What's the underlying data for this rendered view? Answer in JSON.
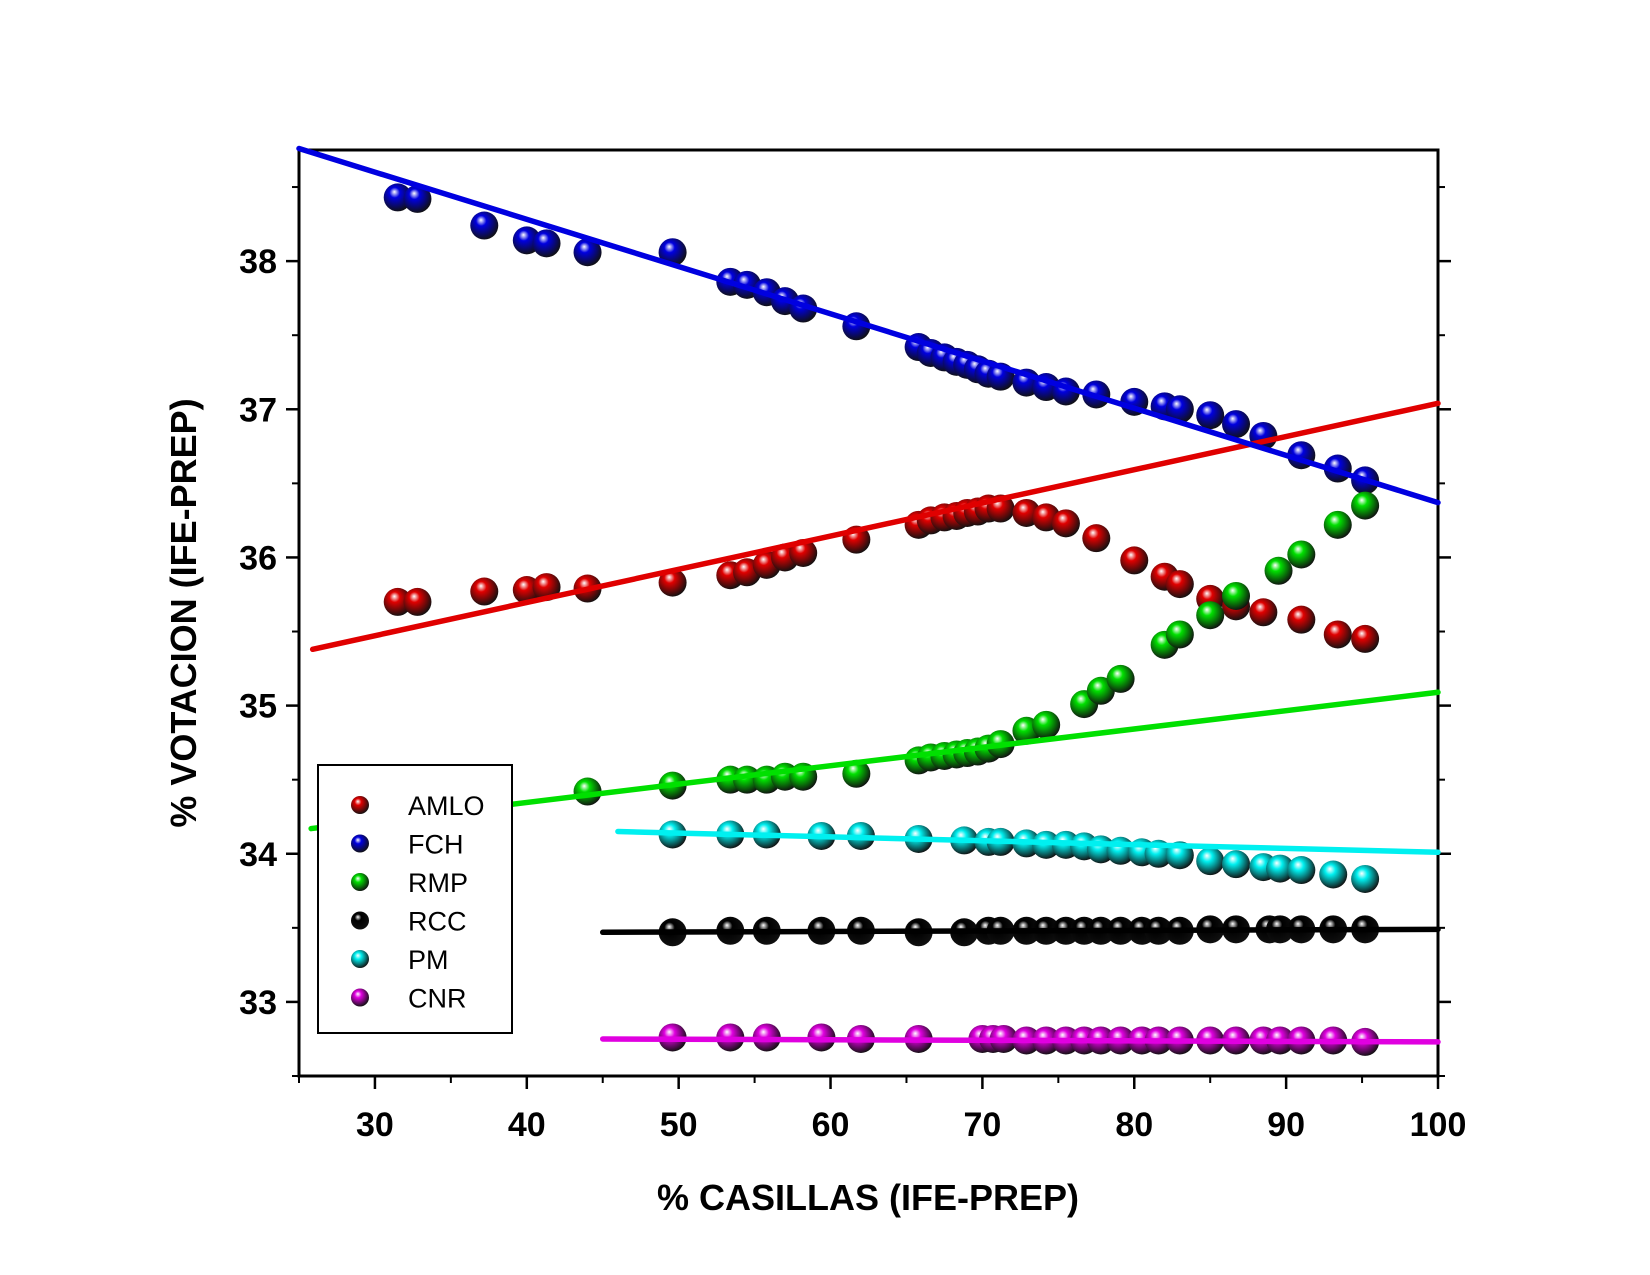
{
  "chart_data": {
    "type": "scatter",
    "xlabel": "% CASILLAS (IFE-PREP)",
    "ylabel": "% VOTACION (IFE-PREP)",
    "xlim": [
      25,
      100
    ],
    "ylim": [
      32.5,
      38.75
    ],
    "x_ticks": [
      30,
      40,
      50,
      60,
      70,
      80,
      90,
      100
    ],
    "y_ticks": [
      33,
      34,
      35,
      36,
      37,
      38
    ],
    "grid": false,
    "legend_position": "bottom-left",
    "series": [
      {
        "name": "AMLO",
        "color": "#e00000",
        "x": [
          31.5,
          32.8,
          37.2,
          40.0,
          41.3,
          44.0,
          49.6,
          53.4,
          54.5,
          55.8,
          57.0,
          58.2,
          61.7,
          65.8,
          66.6,
          67.5,
          68.3,
          69.0,
          69.7,
          70.4,
          71.2,
          72.9,
          74.2,
          75.5,
          77.5,
          80.0,
          82.0,
          83.0,
          85.0,
          86.7,
          88.5,
          91.0,
          93.4,
          95.2
        ],
        "y": [
          35.7,
          35.7,
          35.77,
          35.78,
          35.8,
          35.79,
          35.83,
          35.88,
          35.9,
          35.95,
          36.0,
          36.03,
          36.12,
          36.22,
          36.25,
          36.27,
          36.28,
          36.3,
          36.31,
          36.33,
          36.33,
          36.3,
          36.27,
          36.23,
          36.13,
          35.98,
          35.87,
          35.82,
          35.72,
          35.67,
          35.63,
          35.58,
          35.48,
          35.45
        ],
        "fit": [
          [
            25.9,
            35.38
          ],
          [
            100,
            37.04
          ]
        ]
      },
      {
        "name": "FCH",
        "color": "#0000e0",
        "x": [
          31.5,
          32.8,
          37.2,
          40.0,
          41.3,
          44.0,
          49.6,
          53.4,
          54.5,
          55.8,
          57.0,
          58.2,
          61.7,
          65.8,
          66.6,
          67.5,
          68.3,
          69.0,
          69.7,
          70.4,
          71.2,
          72.9,
          74.2,
          75.5,
          77.5,
          80.0,
          82.0,
          83.0,
          85.0,
          86.7,
          88.5,
          91.0,
          93.4,
          95.2
        ],
        "y": [
          38.43,
          38.42,
          38.24,
          38.14,
          38.12,
          38.06,
          38.06,
          37.86,
          37.84,
          37.79,
          37.73,
          37.68,
          37.56,
          37.42,
          37.38,
          37.35,
          37.32,
          37.3,
          37.27,
          37.24,
          37.22,
          37.18,
          37.15,
          37.12,
          37.1,
          37.05,
          37.02,
          37.0,
          36.96,
          36.9,
          36.82,
          36.69,
          36.6,
          36.52
        ],
        "fit": [
          [
            25,
            38.76
          ],
          [
            100,
            36.37
          ]
        ]
      },
      {
        "name": "RMP",
        "color": "#00e000",
        "x": [
          44.0,
          49.6,
          53.4,
          54.5,
          55.8,
          57.0,
          58.2,
          61.7,
          65.8,
          66.6,
          67.5,
          68.3,
          69.0,
          69.7,
          70.4,
          71.2,
          72.9,
          74.2,
          76.7,
          77.8,
          79.1,
          82.0,
          83.0,
          85.0,
          86.7,
          89.5,
          91.0,
          93.4,
          95.2
        ],
        "y": [
          34.42,
          34.46,
          34.5,
          34.5,
          34.5,
          34.52,
          34.52,
          34.54,
          34.63,
          34.65,
          34.66,
          34.67,
          34.68,
          34.69,
          34.71,
          34.74,
          34.83,
          34.87,
          35.01,
          35.1,
          35.18,
          35.41,
          35.48,
          35.61,
          35.74,
          35.91,
          36.02,
          36.22,
          36.35
        ],
        "fit": [
          [
            25.8,
            34.17
          ],
          [
            100,
            35.09
          ]
        ]
      },
      {
        "name": "RCC",
        "color": "#000000",
        "x": [
          49.6,
          53.4,
          55.8,
          59.4,
          62.0,
          65.8,
          68.8,
          70.4,
          71.2,
          72.9,
          74.2,
          75.5,
          76.7,
          77.8,
          79.1,
          80.5,
          81.6,
          83.0,
          85.0,
          86.7,
          88.9,
          89.6,
          91.0,
          93.1,
          95.2
        ],
        "y": [
          33.47,
          33.48,
          33.48,
          33.48,
          33.48,
          33.47,
          33.47,
          33.48,
          33.48,
          33.48,
          33.48,
          33.48,
          33.48,
          33.48,
          33.48,
          33.48,
          33.48,
          33.48,
          33.49,
          33.49,
          33.49,
          33.49,
          33.49,
          33.49,
          33.49
        ],
        "fit": [
          [
            45,
            33.47
          ],
          [
            100,
            33.49
          ]
        ]
      },
      {
        "name": "PM",
        "color": "#00f0f0",
        "x": [
          49.6,
          53.4,
          55.8,
          59.4,
          62.0,
          65.8,
          68.8,
          70.4,
          71.2,
          72.9,
          74.2,
          75.5,
          76.7,
          77.8,
          79.1,
          80.5,
          81.6,
          83.0,
          85.0,
          86.7,
          88.5,
          89.6,
          91.0,
          93.1,
          95.2
        ],
        "y": [
          34.13,
          34.13,
          34.13,
          34.12,
          34.12,
          34.1,
          34.09,
          34.08,
          34.08,
          34.07,
          34.06,
          34.06,
          34.05,
          34.03,
          34.02,
          34.01,
          34.0,
          33.99,
          33.95,
          33.93,
          33.91,
          33.9,
          33.89,
          33.86,
          33.83
        ],
        "fit": [
          [
            46,
            34.15
          ],
          [
            100,
            34.01
          ]
        ]
      },
      {
        "name": "CNR",
        "color": "#e000e0",
        "x": [
          49.6,
          53.4,
          55.8,
          59.4,
          62.0,
          65.8,
          70.0,
          70.7,
          71.4,
          72.9,
          74.2,
          75.5,
          76.7,
          77.8,
          79.1,
          80.5,
          81.6,
          83.0,
          85.0,
          86.7,
          88.5,
          89.6,
          91.0,
          93.1,
          95.2
        ],
        "y": [
          32.76,
          32.76,
          32.76,
          32.76,
          32.75,
          32.75,
          32.75,
          32.75,
          32.75,
          32.74,
          32.74,
          32.74,
          32.74,
          32.74,
          32.74,
          32.74,
          32.74,
          32.74,
          32.74,
          32.74,
          32.74,
          32.74,
          32.74,
          32.74,
          32.73
        ],
        "fit": [
          [
            45,
            32.75
          ],
          [
            100,
            32.73
          ]
        ]
      }
    ]
  }
}
